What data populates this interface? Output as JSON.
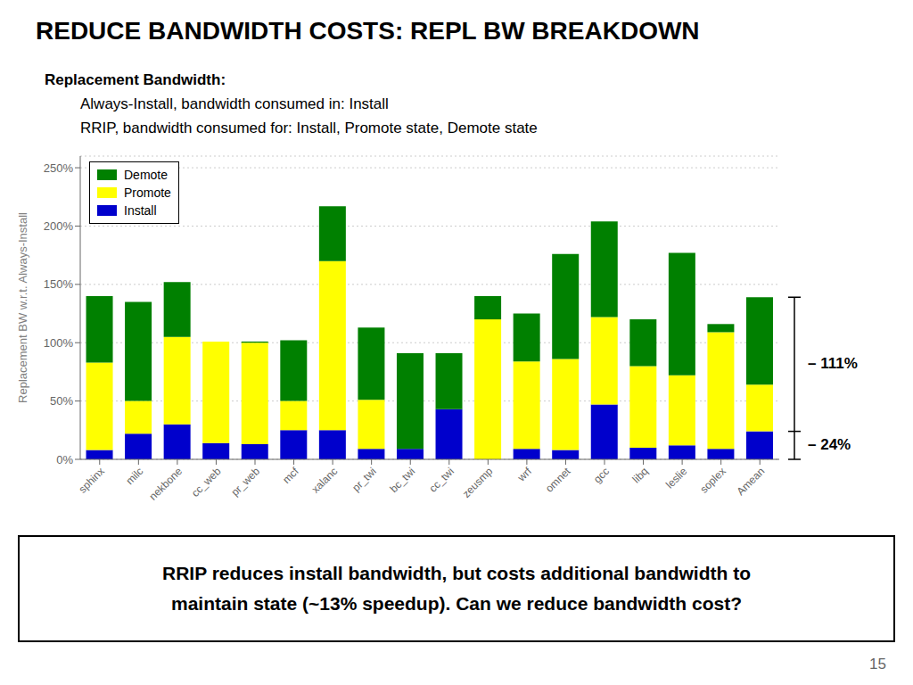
{
  "chart_data": {
    "type": "bar",
    "title": "REDUCE BANDWIDTH COSTS: REPL BW BREAKDOWN",
    "subtitle": [
      "Replacement Bandwidth:",
      "Always-Install, bandwidth consumed in:  Install",
      "RRIP, bandwidth consumed for: Install, Promote state, Demote state"
    ],
    "categories": [
      "sphinx",
      "milc",
      "nekbone",
      "cc_web",
      "pr_web",
      "mcf",
      "xalanc",
      "pr_twi",
      "bc_twi",
      "cc_twi",
      "zeusmp",
      "wrf",
      "omnet",
      "gcc",
      "libq",
      "leslie",
      "soplex",
      "Amean"
    ],
    "series": [
      {
        "name": "Install",
        "color": "#0000cc",
        "values": [
          8,
          22,
          30,
          14,
          13,
          25,
          25,
          9,
          9,
          43,
          0,
          9,
          8,
          47,
          10,
          12,
          9,
          24
        ]
      },
      {
        "name": "Promote",
        "color": "#ffff00",
        "values": [
          75,
          28,
          75,
          87,
          87,
          25,
          145,
          42,
          0,
          0,
          120,
          75,
          78,
          75,
          70,
          60,
          100,
          40
        ]
      },
      {
        "name": "Demote",
        "color": "#008000",
        "values": [
          57,
          85,
          47,
          0,
          1,
          52,
          47,
          62,
          82,
          48,
          20,
          41,
          90,
          82,
          40,
          105,
          7,
          75
        ]
      }
    ],
    "stacked": true,
    "ylabel": "Replacement BW w.r.t. Always-Install",
    "ylim": [
      0,
      260
    ],
    "yticks": [
      {
        "value": 0,
        "label": "0%"
      },
      {
        "value": 50,
        "label": "50%"
      },
      {
        "value": 100,
        "label": "100%"
      },
      {
        "value": 150,
        "label": "150%"
      },
      {
        "value": 200,
        "label": "200%"
      },
      {
        "value": 250,
        "label": "250%"
      }
    ],
    "grid": true,
    "legend": "upper left",
    "annotations": [
      "– 111%",
      "– 24%"
    ],
    "caption": [
      "RRIP reduces install bandwidth, but costs additional bandwidth to",
      "maintain state (~13% speedup). Can we reduce bandwidth cost?"
    ],
    "page_number": "15"
  }
}
